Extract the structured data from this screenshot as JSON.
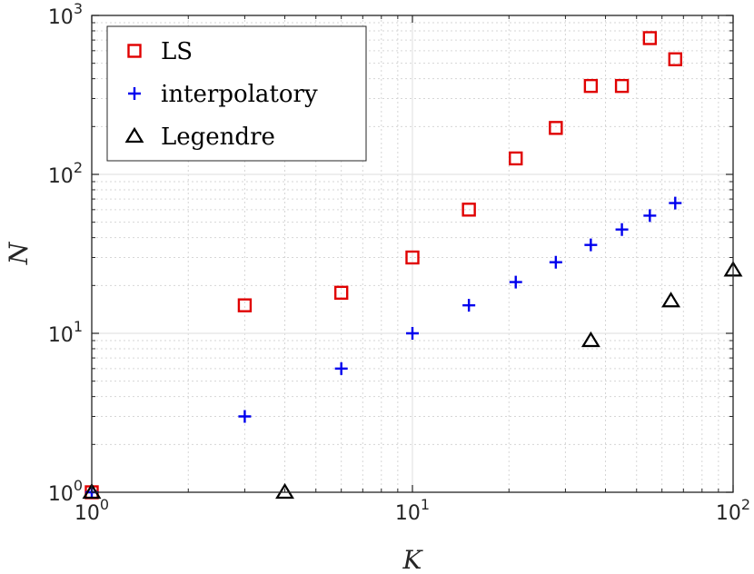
{
  "chart_data": {
    "type": "scatter",
    "title": "",
    "xlabel": "K",
    "ylabel": "N",
    "xscale": "log",
    "yscale": "log",
    "xlim": [
      1,
      100
    ],
    "ylim": [
      1,
      1000
    ],
    "grid": true,
    "legend_position": "top-left",
    "x_ticks": [
      {
        "base": "10",
        "exp": "0",
        "value": 1
      },
      {
        "base": "10",
        "exp": "1",
        "value": 10
      },
      {
        "base": "10",
        "exp": "2",
        "value": 100
      }
    ],
    "y_ticks": [
      {
        "base": "10",
        "exp": "0",
        "value": 1
      },
      {
        "base": "10",
        "exp": "1",
        "value": 10
      },
      {
        "base": "10",
        "exp": "2",
        "value": 100
      },
      {
        "base": "10",
        "exp": "3",
        "value": 1000
      }
    ],
    "series": [
      {
        "name": "LS",
        "marker": "square",
        "color": "#e00000",
        "points": [
          {
            "x": 1,
            "y": 1
          },
          {
            "x": 3,
            "y": 15
          },
          {
            "x": 6,
            "y": 18
          },
          {
            "x": 10,
            "y": 30
          },
          {
            "x": 15,
            "y": 60
          },
          {
            "x": 21,
            "y": 126
          },
          {
            "x": 28,
            "y": 196
          },
          {
            "x": 36,
            "y": 360
          },
          {
            "x": 45,
            "y": 360
          },
          {
            "x": 55,
            "y": 720
          },
          {
            "x": 66,
            "y": 530
          }
        ]
      },
      {
        "name": "interpolatory",
        "marker": "plus",
        "color": "#0000ee",
        "points": [
          {
            "x": 1,
            "y": 1
          },
          {
            "x": 3,
            "y": 3
          },
          {
            "x": 6,
            "y": 6
          },
          {
            "x": 10,
            "y": 10
          },
          {
            "x": 15,
            "y": 15
          },
          {
            "x": 21,
            "y": 21
          },
          {
            "x": 28,
            "y": 28
          },
          {
            "x": 36,
            "y": 36
          },
          {
            "x": 45,
            "y": 45
          },
          {
            "x": 55,
            "y": 55
          },
          {
            "x": 66,
            "y": 66
          }
        ]
      },
      {
        "name": "Legendre",
        "marker": "triangle",
        "color": "#000000",
        "points": [
          {
            "x": 1,
            "y": 1
          },
          {
            "x": 4,
            "y": 1
          },
          {
            "x": 36,
            "y": 9
          },
          {
            "x": 64,
            "y": 16
          },
          {
            "x": 100,
            "y": 25
          }
        ]
      }
    ]
  }
}
